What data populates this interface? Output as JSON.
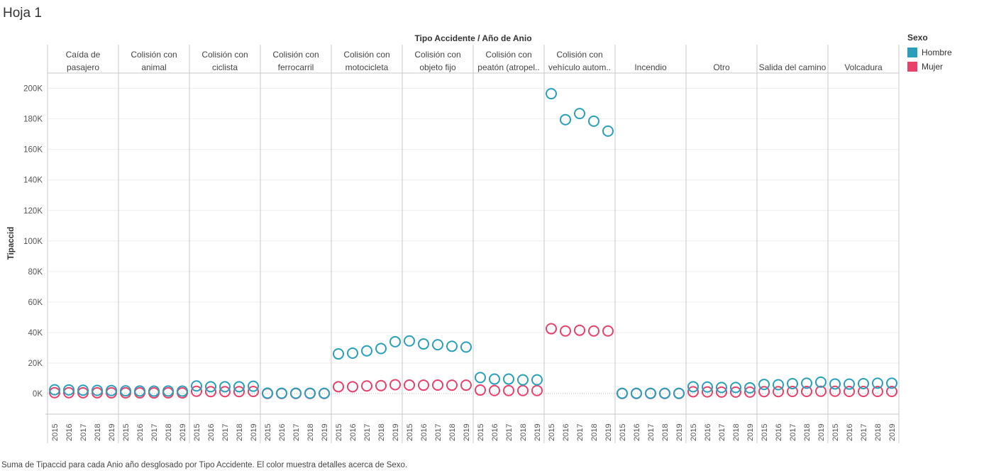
{
  "sheet_title": "Hoja 1",
  "caption": "Suma de Tipaccid para cada Anio año desglosado por Tipo Accidente.  El color muestra detalles acerca de Sexo.",
  "colors": {
    "Hombre": "#2a9fbb",
    "Mujer": "#e8426b",
    "grid": "#eeeeee",
    "divider": "#c8c8c8",
    "axis_text": "#555555"
  },
  "legend": {
    "title": "Sexo",
    "items": [
      {
        "label": "Hombre",
        "color": "#2a9fbb"
      },
      {
        "label": "Mujer",
        "color": "#e8426b"
      }
    ]
  },
  "chart_data": {
    "type": "scatter",
    "title": "Tipo Accidente  /  Año de Anio",
    "ylabel": "Tipaccid",
    "xlabel": "",
    "ylim": [
      0,
      210000
    ],
    "yticks": [
      0,
      20000,
      40000,
      60000,
      80000,
      100000,
      120000,
      140000,
      160000,
      180000,
      200000
    ],
    "ytick_labels": [
      "0K",
      "20K",
      "40K",
      "60K",
      "80K",
      "100K",
      "120K",
      "140K",
      "160K",
      "180K",
      "200K"
    ],
    "years": [
      "2015",
      "2016",
      "2017",
      "2018",
      "2019"
    ],
    "grid": true,
    "legend_position": "top-right",
    "panels": [
      {
        "label": [
          "Caída de",
          "pasajero"
        ],
        "Hombre": [
          2500,
          2400,
          2200,
          2100,
          2000
        ],
        "Mujer": [
          600,
          600,
          550,
          550,
          500
        ]
      },
      {
        "label": [
          "Colisión con",
          "animal"
        ],
        "Hombre": [
          1800,
          1700,
          1600,
          1700,
          1600
        ],
        "Mujer": [
          500,
          500,
          450,
          500,
          450
        ]
      },
      {
        "label": [
          "Colisión con",
          "ciclista"
        ],
        "Hombre": [
          5000,
          4500,
          4500,
          4500,
          4800
        ],
        "Mujer": [
          1500,
          1300,
          1300,
          1300,
          1400
        ]
      },
      {
        "label": [
          "Colisión con",
          "ferrocarril"
        ],
        "Hombre": [
          300,
          250,
          250,
          250,
          200
        ],
        "Mujer": [
          80,
          70,
          70,
          70,
          60
        ]
      },
      {
        "label": [
          "Colisión con",
          "motocicleta"
        ],
        "Hombre": [
          26000,
          26500,
          28000,
          29500,
          34000
        ],
        "Mujer": [
          4500,
          4500,
          5000,
          5200,
          5800
        ]
      },
      {
        "label": [
          "Colisión con",
          "objeto fijo"
        ],
        "Hombre": [
          34500,
          32500,
          32000,
          31000,
          30500
        ],
        "Mujer": [
          5600,
          5500,
          5600,
          5500,
          5500
        ]
      },
      {
        "label": [
          "Colisión con",
          "peatón (atropel.."
        ],
        "Hombre": [
          10500,
          9500,
          9500,
          9000,
          9000
        ],
        "Mujer": [
          2300,
          2000,
          2000,
          2000,
          2000
        ]
      },
      {
        "label": [
          "Colisión con",
          "vehículo autom.."
        ],
        "Hombre": [
          196500,
          179500,
          183500,
          178500,
          172000
        ],
        "Mujer": [
          42500,
          41000,
          41500,
          41000,
          41000
        ]
      },
      {
        "label": [
          "",
          "Incendio"
        ],
        "Hombre": [
          200,
          200,
          200,
          200,
          200
        ],
        "Mujer": [
          50,
          50,
          50,
          50,
          50
        ]
      },
      {
        "label": [
          "",
          "Otro"
        ],
        "Hombre": [
          4500,
          4300,
          4000,
          4000,
          3800
        ],
        "Mujer": [
          1200,
          1100,
          1000,
          1000,
          1000
        ]
      },
      {
        "label": [
          "",
          "Salida del camino"
        ],
        "Hombre": [
          6000,
          5800,
          6500,
          6800,
          7500
        ],
        "Mujer": [
          1300,
          1300,
          1400,
          1400,
          1500
        ]
      },
      {
        "label": [
          "",
          "Volcadura"
        ],
        "Hombre": [
          6300,
          6200,
          6500,
          6800,
          6800
        ],
        "Mujer": [
          1500,
          1400,
          1400,
          1400,
          1400
        ]
      }
    ]
  }
}
